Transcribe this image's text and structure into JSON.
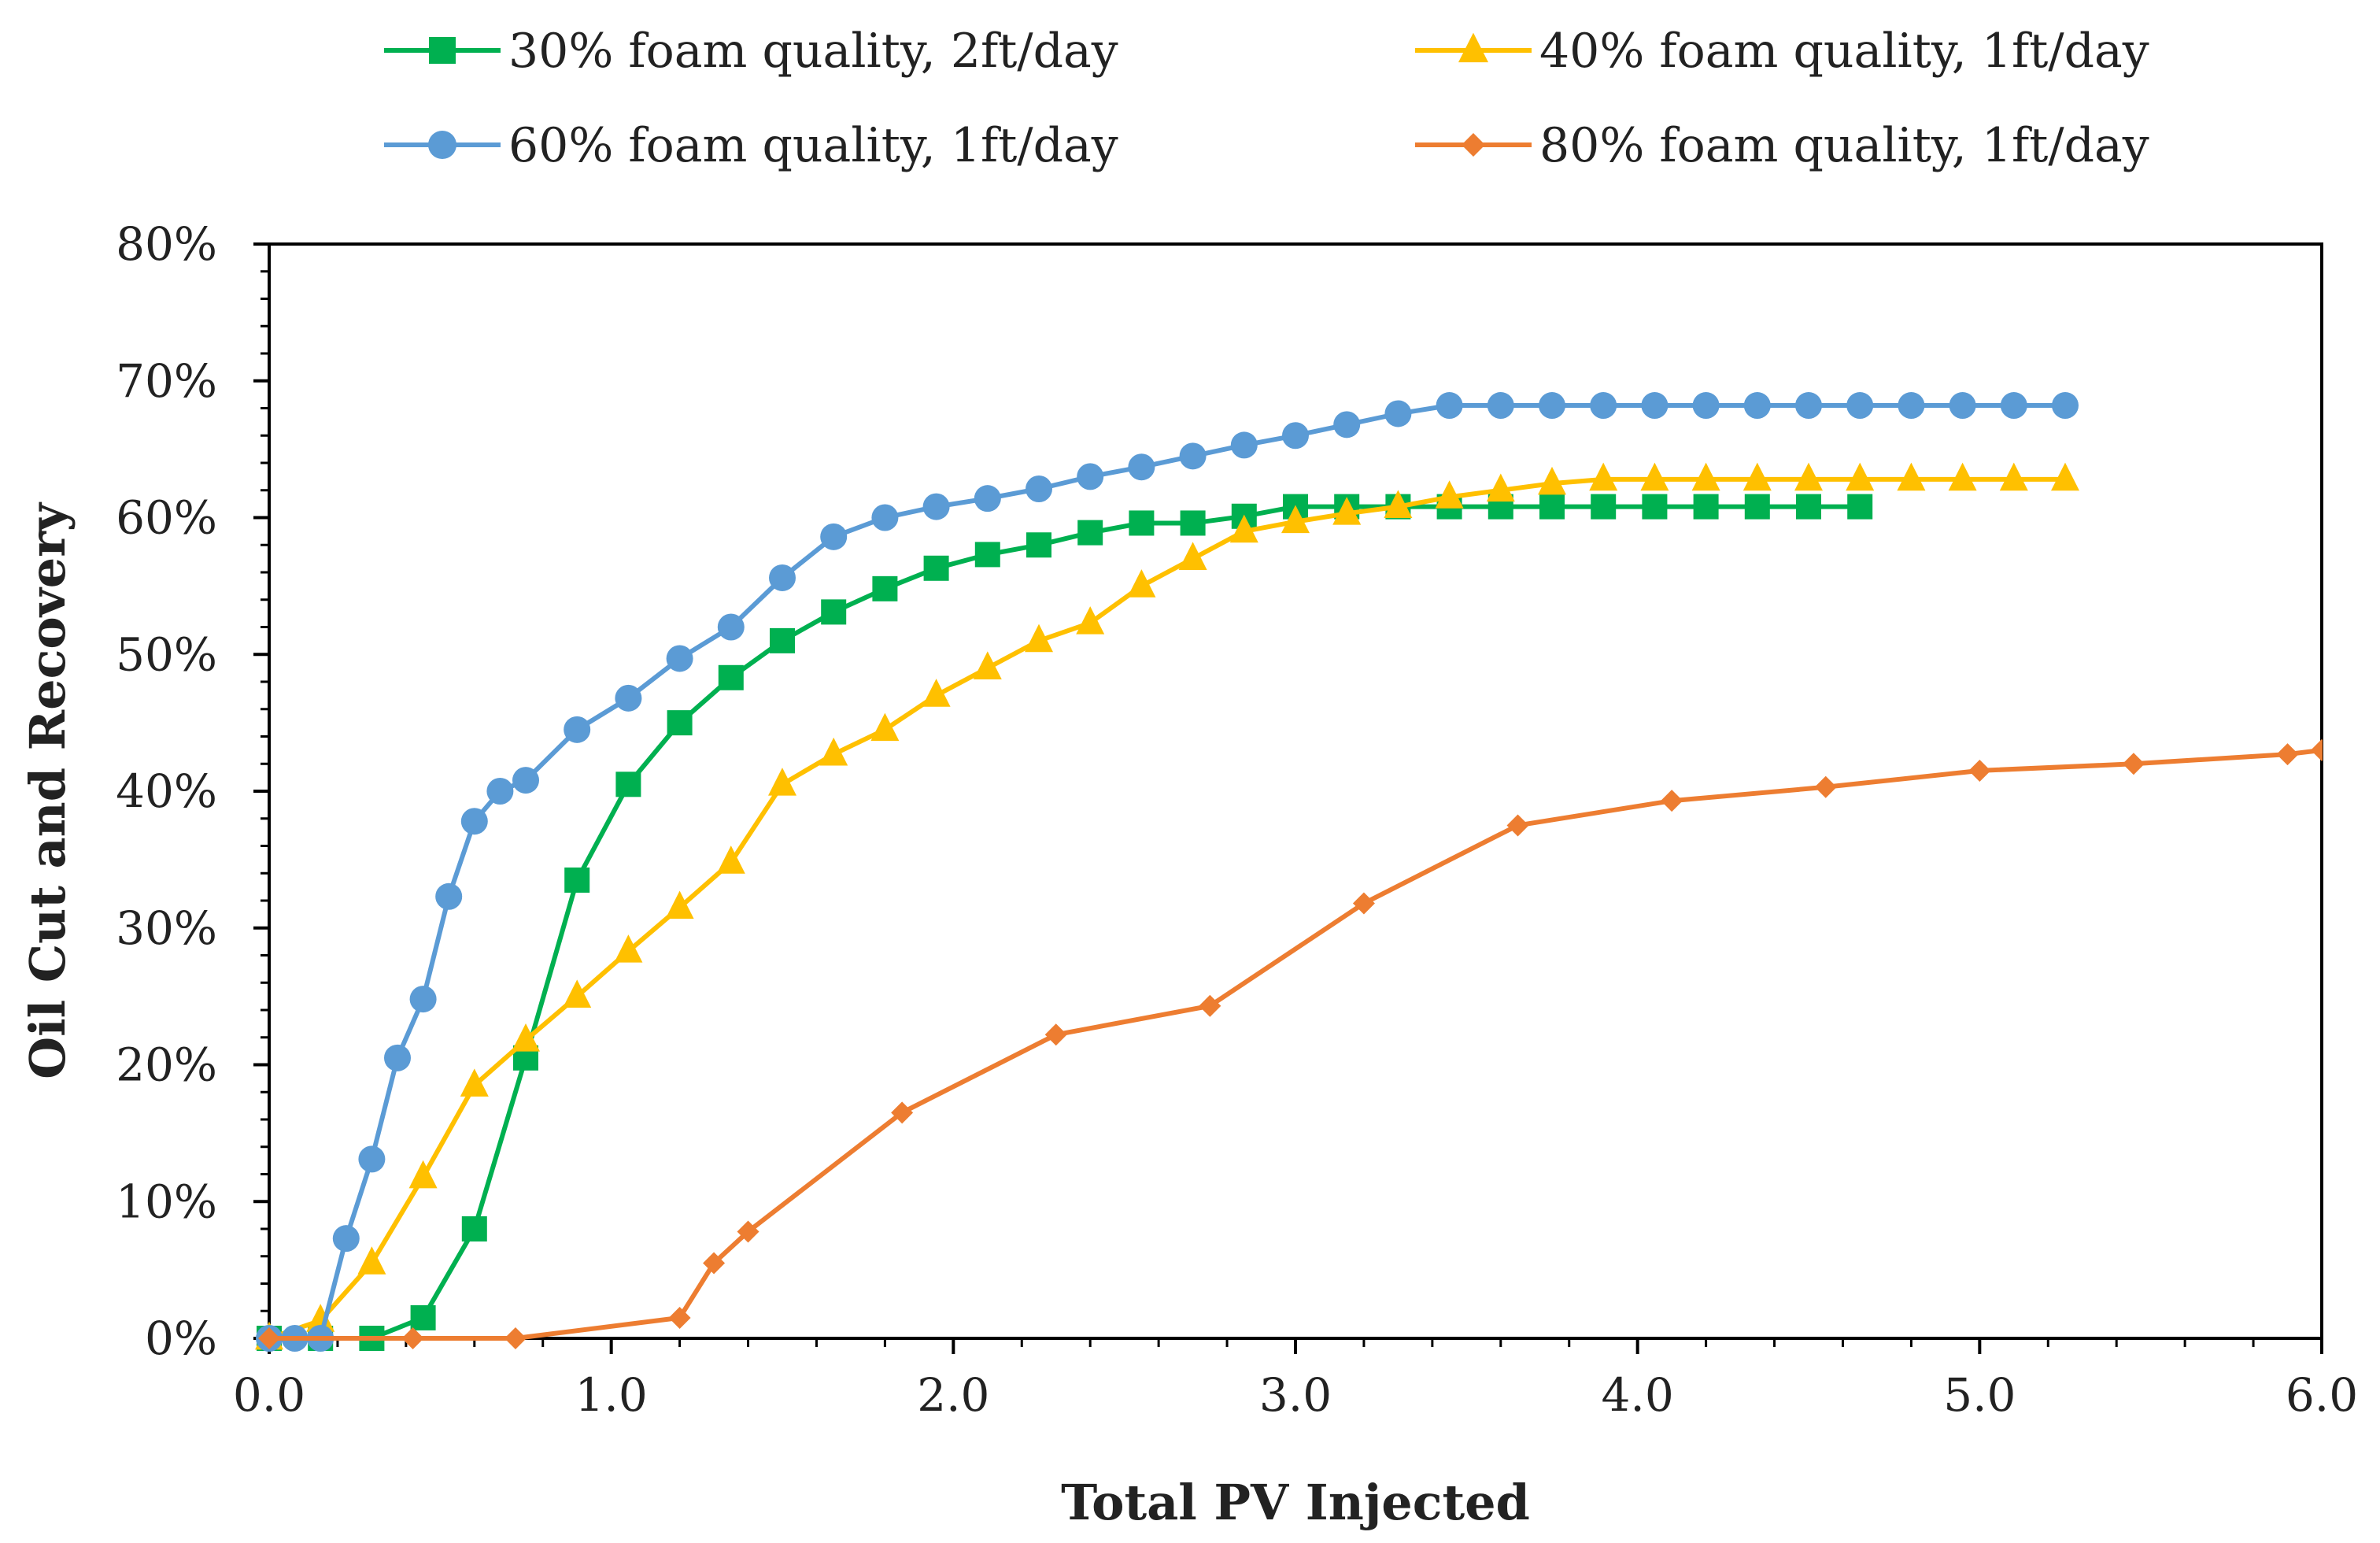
{
  "chart_data": {
    "type": "line",
    "title": "",
    "xlabel": "Total PV Injected",
    "ylabel": "Oil Cut and Recovery",
    "xlim": [
      0,
      6
    ],
    "ylim": [
      0,
      0.8
    ],
    "xticks": [
      0,
      1,
      2,
      3,
      4,
      5,
      6
    ],
    "xtick_labels": [
      "0.0",
      "1.0",
      "2.0",
      "3.0",
      "4.0",
      "5.0",
      "6.0"
    ],
    "yticks": [
      0,
      0.1,
      0.2,
      0.3,
      0.4,
      0.5,
      0.6,
      0.7,
      0.8
    ],
    "ytick_labels": [
      "0%",
      "10%",
      "20%",
      "30%",
      "40%",
      "50%",
      "60%",
      "70%",
      "80%"
    ],
    "grid": false,
    "legend_position": "top",
    "series": [
      {
        "name": "30% foam quality, 2ft/day",
        "color": "#00b050",
        "marker": "square",
        "x": [
          0,
          0.15,
          0.3,
          0.45,
          0.6,
          0.75,
          0.9,
          1.05,
          1.2,
          1.35,
          1.5,
          1.65,
          1.8,
          1.95,
          2.1,
          2.25,
          2.4,
          2.55,
          2.7,
          2.85,
          3.0,
          3.15,
          3.3,
          3.45,
          3.6,
          3.75,
          3.9,
          4.05,
          4.2,
          4.35,
          4.5,
          4.65
        ],
        "y": [
          0,
          0,
          0,
          0.015,
          0.08,
          0.205,
          0.335,
          0.405,
          0.45,
          0.483,
          0.51,
          0.531,
          0.548,
          0.563,
          0.573,
          0.58,
          0.589,
          0.596,
          0.596,
          0.601,
          0.608,
          0.608,
          0.608,
          0.608,
          0.608,
          0.608,
          0.608,
          0.608,
          0.608,
          0.608,
          0.608,
          0.608
        ]
      },
      {
        "name": "40% foam quality, 1ft/day",
        "color": "#ffc000",
        "marker": "triangle",
        "x": [
          0,
          0.15,
          0.3,
          0.45,
          0.6,
          0.75,
          0.9,
          1.05,
          1.2,
          1.35,
          1.5,
          1.65,
          1.8,
          1.95,
          2.1,
          2.25,
          2.4,
          2.55,
          2.7,
          2.85,
          3.0,
          3.15,
          3.3,
          3.45,
          3.6,
          3.75,
          3.9,
          4.05,
          4.2,
          4.35,
          4.5,
          4.65,
          4.8,
          4.95,
          5.1,
          5.25
        ],
        "y": [
          0,
          0.013,
          0.055,
          0.118,
          0.185,
          0.218,
          0.25,
          0.283,
          0.315,
          0.348,
          0.405,
          0.427,
          0.445,
          0.47,
          0.49,
          0.51,
          0.523,
          0.55,
          0.57,
          0.59,
          0.597,
          0.603,
          0.608,
          0.615,
          0.62,
          0.625,
          0.628,
          0.628,
          0.628,
          0.628,
          0.628,
          0.628,
          0.628,
          0.628,
          0.628,
          0.628
        ]
      },
      {
        "name": "60% foam quality, 1ft/day",
        "color": "#5b9bd5",
        "marker": "circle",
        "x": [
          0,
          0.075,
          0.15,
          0.225,
          0.3,
          0.375,
          0.45,
          0.525,
          0.6,
          0.675,
          0.75,
          0.9,
          1.05,
          1.2,
          1.35,
          1.5,
          1.65,
          1.8,
          1.95,
          2.1,
          2.25,
          2.4,
          2.55,
          2.7,
          2.85,
          3.0,
          3.15,
          3.3,
          3.45,
          3.6,
          3.75,
          3.9,
          4.05,
          4.2,
          4.35,
          4.5,
          4.65,
          4.8,
          4.95,
          5.1,
          5.25
        ],
        "y": [
          0,
          0,
          0,
          0.073,
          0.131,
          0.205,
          0.248,
          0.323,
          0.378,
          0.4,
          0.408,
          0.445,
          0.468,
          0.497,
          0.52,
          0.556,
          0.586,
          0.6,
          0.608,
          0.614,
          0.621,
          0.63,
          0.637,
          0.645,
          0.653,
          0.66,
          0.668,
          0.676,
          0.682,
          0.682,
          0.682,
          0.682,
          0.682,
          0.682,
          0.682,
          0.682,
          0.682,
          0.682,
          0.682,
          0.682,
          0.682
        ]
      },
      {
        "name": "80% foam quality, 1ft/day",
        "color": "#ed7d31",
        "marker": "diamond",
        "x": [
          0,
          0.42,
          0.72,
          1.2,
          1.3,
          1.4,
          1.85,
          2.3,
          2.75,
          3.2,
          3.65,
          4.1,
          4.55,
          5.0,
          5.45,
          5.9,
          6.0
        ],
        "y": [
          0,
          0,
          0,
          0.015,
          0.055,
          0.078,
          0.165,
          0.222,
          0.243,
          0.318,
          0.375,
          0.393,
          0.403,
          0.415,
          0.42,
          0.427,
          0.43
        ]
      }
    ]
  }
}
